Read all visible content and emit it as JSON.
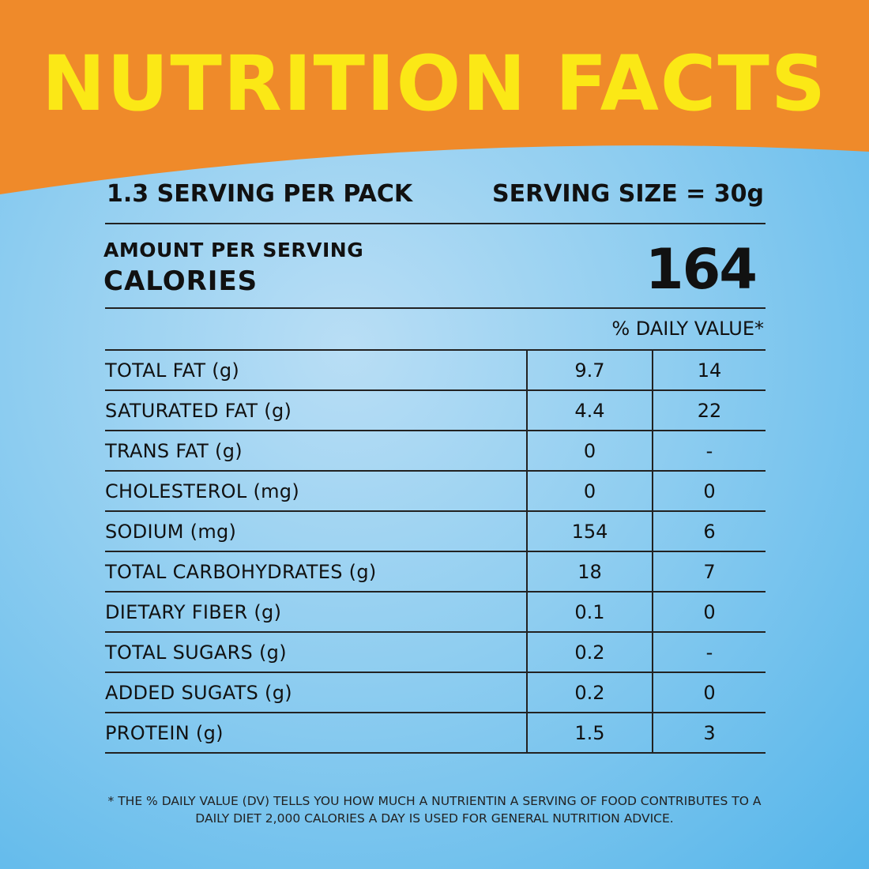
{
  "colors": {
    "header_orange": "#ef8a2a",
    "title_yellow": "#fbe816",
    "text_dark": "#111111",
    "background_blue": "#7ec6ee"
  },
  "header": {
    "title": "NUTRITION FACTS"
  },
  "serving": {
    "per_pack": "1.3 SERVING PER PACK",
    "size": "SERVING SIZE = 30g"
  },
  "calories": {
    "amount_label": "AMOUNT PER SERVING",
    "label": "CALORIES",
    "value": "164"
  },
  "table": {
    "dv_header": "% DAILY VALUE*",
    "rows": [
      {
        "name": "TOTAL FAT (g)",
        "amount": "9.7",
        "dv": "14"
      },
      {
        "name": "SATURATED FAT (g)",
        "amount": "4.4",
        "dv": "22"
      },
      {
        "name": "TRANS FAT (g)",
        "amount": "0",
        "dv": "-"
      },
      {
        "name": "CHOLESTEROL (mg)",
        "amount": "0",
        "dv": "0"
      },
      {
        "name": "SODIUM (mg)",
        "amount": "154",
        "dv": "6"
      },
      {
        "name": "TOTAL CARBOHYDRATES (g)",
        "amount": "18",
        "dv": "7"
      },
      {
        "name": "DIETARY FIBER (g)",
        "amount": "0.1",
        "dv": "0"
      },
      {
        "name": "TOTAL SUGARS (g)",
        "amount": "0.2",
        "dv": "-"
      },
      {
        "name": "ADDED SUGATS (g)",
        "amount": "0.2",
        "dv": "0"
      },
      {
        "name": "PROTEIN (g)",
        "amount": "1.5",
        "dv": "3"
      }
    ]
  },
  "footnote": {
    "line1": "* THE % DAILY VALUE (DV) TELLS YOU HOW MUCH A NUTRIENTIN A SERVING OF FOOD CONTRIBUTES TO A",
    "line2": "DAILY DIET 2,000 CALORIES A DAY IS USED FOR GENERAL NUTRITION ADVICE."
  }
}
